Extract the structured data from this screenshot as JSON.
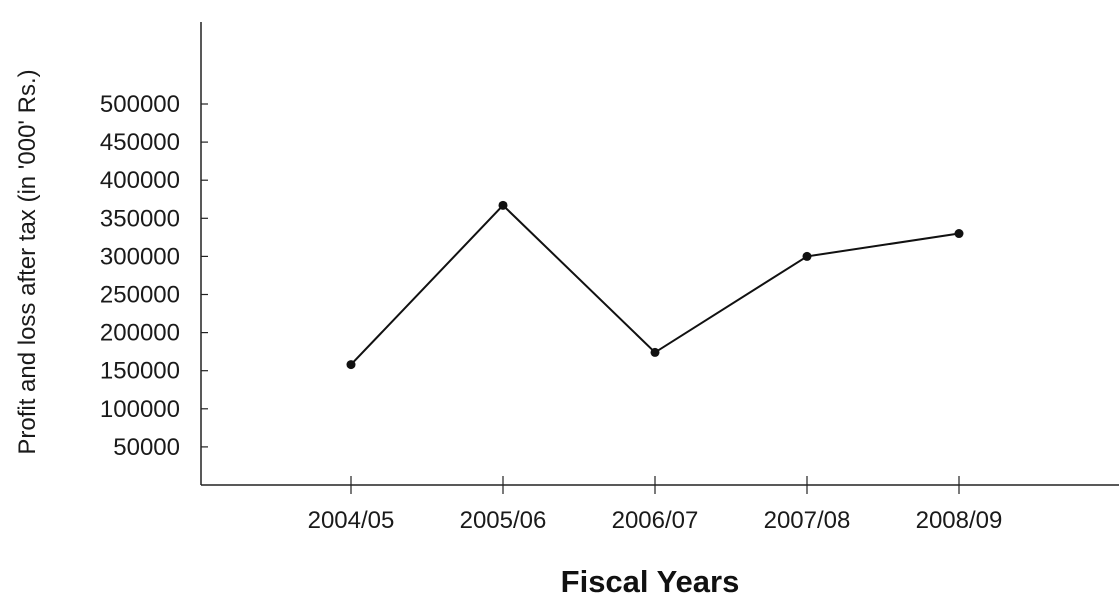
{
  "chart_data": {
    "type": "line",
    "title": "",
    "xlabel": "Fiscal Years",
    "ylabel": "Profit and loss after tax (in '000' Rs.)",
    "categories": [
      "2004/05",
      "2005/06",
      "2006/07",
      "2007/08",
      "2008/09"
    ],
    "series": [
      {
        "values": [
          158000,
          367000,
          174000,
          300000,
          330000
        ]
      }
    ],
    "y_ticks": [
      50000,
      100000,
      150000,
      200000,
      250000,
      300000,
      350000,
      400000,
      450000,
      500000
    ],
    "ylim": [
      0,
      500000
    ],
    "grid": false,
    "legend": "none",
    "colors": {
      "line": "#111111",
      "marker": "#111111",
      "axis": "#222222"
    }
  }
}
